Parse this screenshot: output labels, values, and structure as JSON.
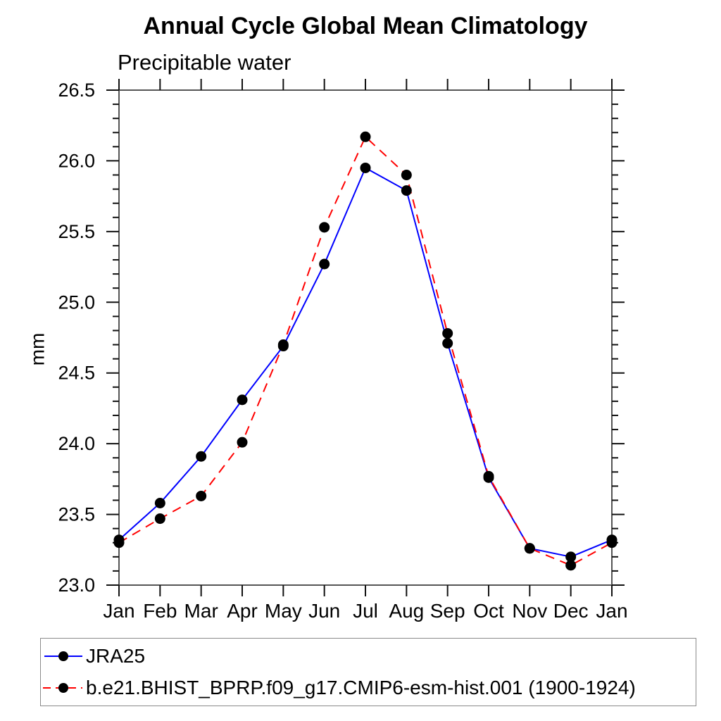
{
  "chart_data": {
    "type": "line",
    "title": "Annual Cycle Global Mean Climatology",
    "subtitle": "Precipitable water",
    "xlabel": "",
    "ylabel": "mm",
    "categories": [
      "Jan",
      "Feb",
      "Mar",
      "Apr",
      "May",
      "Jun",
      "Jul",
      "Aug",
      "Sep",
      "Oct",
      "Nov",
      "Dec",
      "Jan"
    ],
    "series": [
      {
        "name": "JRA25",
        "color": "#0000ff",
        "line_style": "solid",
        "marker": "filled-black-circle",
        "values": [
          23.32,
          23.58,
          23.91,
          24.31,
          24.69,
          25.27,
          25.95,
          25.79,
          24.71,
          23.76,
          23.26,
          23.2,
          23.32
        ]
      },
      {
        "name": "b.e21.BHIST_BPRP.f09_g17.CMIP6-esm-hist.001 (1900-1924)",
        "color": "#ff0000",
        "line_style": "dashed",
        "marker": "filled-black-circle",
        "values": [
          23.3,
          23.47,
          23.63,
          24.01,
          24.7,
          25.53,
          26.17,
          25.9,
          24.78,
          23.77,
          23.26,
          23.14,
          23.3
        ]
      }
    ],
    "ylim": [
      23.0,
      26.5
    ],
    "ytick_major_step": 0.5,
    "ytick_minor_step": 0.1,
    "ytick_labels": [
      "23.0",
      "23.5",
      "24.0",
      "24.5",
      "25.0",
      "25.5",
      "26.0",
      "26.5"
    ],
    "grid": false,
    "frame": "box-with-outward-ticks",
    "legend_position": "bottom-left-box",
    "marker_color": "#000000",
    "axis_color": "#555555",
    "tick_color": "#111111"
  }
}
